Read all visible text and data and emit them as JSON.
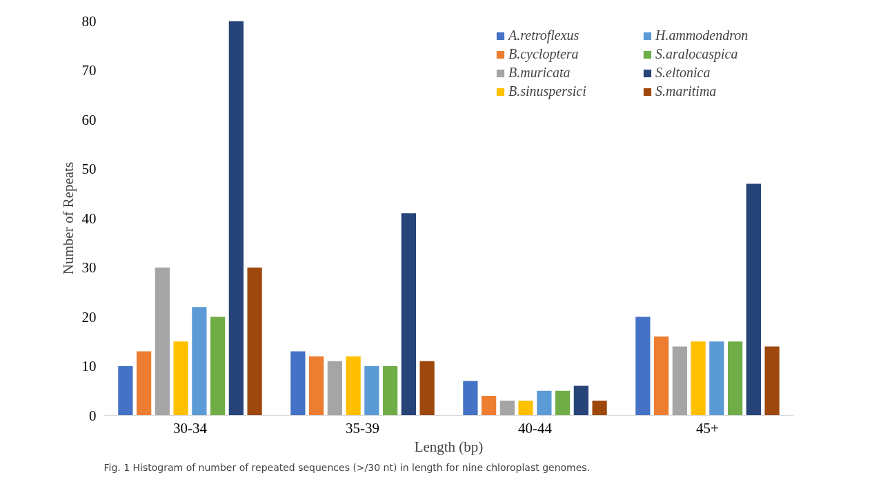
{
  "chart_data": {
    "type": "bar",
    "xlabel": "Length (bp)",
    "ylabel": "Number of Repeats",
    "categories": [
      "30-34",
      "35-39",
      "40-44",
      "45+"
    ],
    "series": [
      {
        "name": "A.retroflexus",
        "color": "#4472c4",
        "values": [
          10,
          13,
          7,
          20
        ]
      },
      {
        "name": "B.cycloptera",
        "color": "#ed7d31",
        "values": [
          13,
          12,
          4,
          16
        ]
      },
      {
        "name": "B.muricata",
        "color": "#a5a5a5",
        "values": [
          30,
          11,
          3,
          14
        ]
      },
      {
        "name": "B.sinuspersici",
        "color": "#ffc000",
        "values": [
          15,
          12,
          3,
          15
        ]
      },
      {
        "name": "H.ammodendron",
        "color": "#5b9bd5",
        "values": [
          22,
          10,
          5,
          15
        ]
      },
      {
        "name": "S.aralocaspica",
        "color": "#70ad47",
        "values": [
          20,
          10,
          5,
          15
        ]
      },
      {
        "name": "S.eltonica",
        "color": "#264478",
        "values": [
          80,
          41,
          6,
          47
        ]
      },
      {
        "name": "S.maritima",
        "color": "#9e480e",
        "values": [
          30,
          11,
          3,
          14
        ]
      }
    ],
    "ylim": [
      0,
      80
    ],
    "yticks": [
      0,
      10,
      20,
      30,
      40,
      50,
      60,
      70,
      80
    ],
    "grid": false,
    "legend": "top right",
    "annotations": [
      "Fig. 1 Histogram of number of repeated sequences (>/30 nt) in length for nine chloroplast genomes."
    ]
  }
}
